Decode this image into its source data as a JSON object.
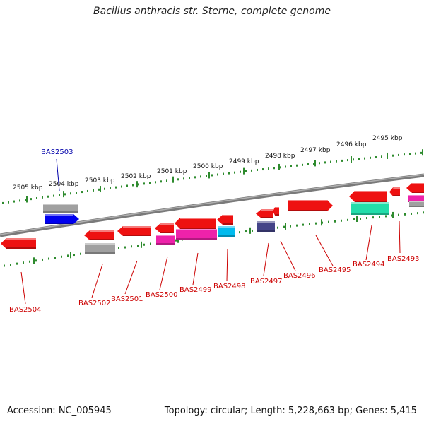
{
  "title": "Bacillus anthracis str. Sterne, complete genome",
  "footer": {
    "accession": "Accession: NC_005945",
    "summary": "Topology: circular; Length: 5,228,663 bp; Genes: 5,415"
  },
  "colors": {
    "backbone": "#8a8a8a",
    "ticks": "#2e8b2e",
    "label_red": "#cc0000",
    "label_blue": "#0000aa"
  },
  "ruler": [
    "2505 kbp",
    "2504 kbp",
    "2503 kbp",
    "2502 kbp",
    "2501 kbp",
    "2500 kbp",
    "2499 kbp",
    "2498 kbp",
    "2497 kbp",
    "2496 kbp",
    "2495 kbp"
  ],
  "gene_labels": [
    {
      "id": "BAS2504",
      "color": "#cc0000"
    },
    {
      "id": "BAS2503",
      "color": "#0000aa"
    },
    {
      "id": "BAS2502",
      "color": "#cc0000"
    },
    {
      "id": "BAS2501",
      "color": "#cc0000"
    },
    {
      "id": "BAS2500",
      "color": "#cc0000"
    },
    {
      "id": "BAS2499",
      "color": "#cc0000"
    },
    {
      "id": "BAS2498",
      "color": "#cc0000"
    },
    {
      "id": "BAS2497",
      "color": "#cc0000"
    },
    {
      "id": "BAS2496",
      "color": "#cc0000"
    },
    {
      "id": "BAS2495",
      "color": "#cc0000"
    },
    {
      "id": "BAS2494",
      "color": "#cc0000"
    },
    {
      "id": "BAS2493",
      "color": "#cc0000"
    }
  ]
}
